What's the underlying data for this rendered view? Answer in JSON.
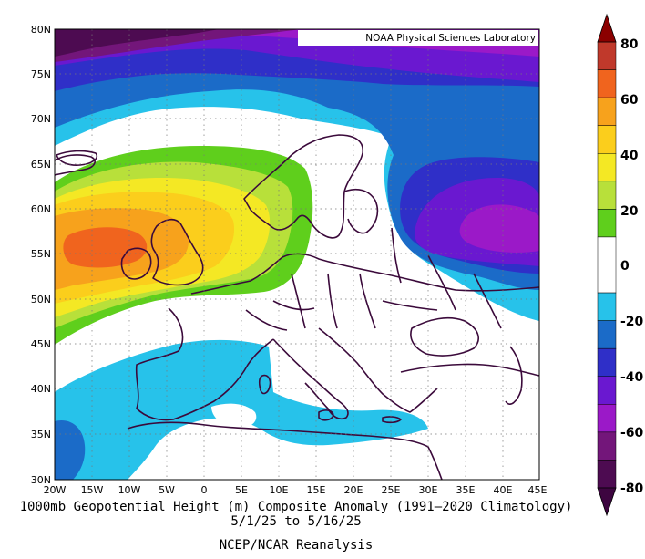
{
  "map": {
    "credit": "NOAA Physical Sciences Laboratory",
    "lon_labels": [
      "20W",
      "15W",
      "10W",
      "5W",
      "0",
      "5E",
      "10E",
      "15E",
      "20E",
      "25E",
      "30E",
      "35E",
      "40E",
      "45E"
    ],
    "lat_labels": [
      "80N",
      "75N",
      "70N",
      "65N",
      "60N",
      "55N",
      "50N",
      "45N",
      "40N",
      "35N",
      "30N"
    ],
    "lon_range": [
      -20,
      45
    ],
    "lat_range": [
      30,
      80
    ],
    "grid": "dotted"
  },
  "colorbar": {
    "labels": [
      "80",
      "60",
      "40",
      "20",
      "0",
      "-20",
      "-40",
      "-60",
      "-80"
    ],
    "bins": [
      {
        "range": [
          70,
          80
        ],
        "color": "#c0392b"
      },
      {
        "range": [
          60,
          70
        ],
        "color": "#f0641e"
      },
      {
        "range": [
          50,
          60
        ],
        "color": "#f7a21c"
      },
      {
        "range": [
          40,
          50
        ],
        "color": "#fbce1c"
      },
      {
        "range": [
          30,
          40
        ],
        "color": "#f4e824"
      },
      {
        "range": [
          20,
          30
        ],
        "color": "#b8e03a"
      },
      {
        "range": [
          10,
          20
        ],
        "color": "#5fcf1c"
      },
      {
        "range": [
          -10,
          10
        ],
        "color": "#ffffff"
      },
      {
        "range": [
          -20,
          -10
        ],
        "color": "#27c2ea"
      },
      {
        "range": [
          -30,
          -20
        ],
        "color": "#1b6bc8"
      },
      {
        "range": [
          -40,
          -30
        ],
        "color": "#2f2fc8"
      },
      {
        "range": [
          -50,
          -40
        ],
        "color": "#6a18d0"
      },
      {
        "range": [
          -60,
          -50
        ],
        "color": "#9b19c8"
      },
      {
        "range": [
          -70,
          -60
        ],
        "color": "#73167a"
      },
      {
        "range": [
          -80,
          -70
        ],
        "color": "#4d0b51"
      }
    ]
  },
  "caption": {
    "title": "1000mb Geopotential Height (m) Composite Anomaly (1991–2020 Climatology)",
    "dates": "5/1/25  to 5/16/25",
    "source": "NCEP/NCAR Reanalysis"
  },
  "colors": {
    "coastline": "#3b0a3b",
    "frame": "#000000"
  }
}
